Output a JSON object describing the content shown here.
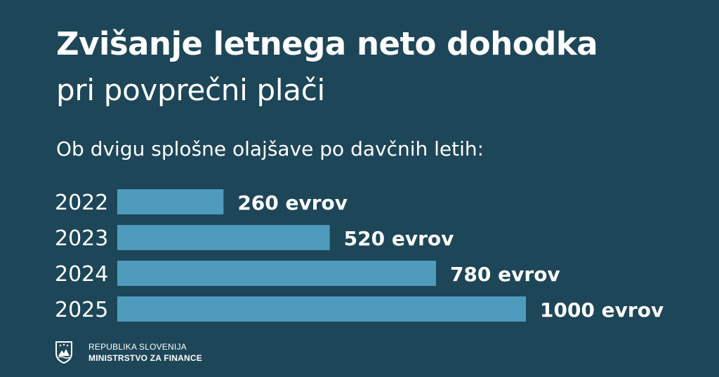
{
  "chart_data": {
    "type": "bar",
    "orientation": "horizontal",
    "title": "Zvišanje letnega neto dohodka",
    "subtitle": "pri povprečni plači",
    "intro": "Ob dvigu splošne olajšave po davčnih letih:",
    "categories": [
      "2022",
      "2023",
      "2024",
      "2025"
    ],
    "values": [
      260,
      520,
      780,
      1000
    ],
    "value_labels": [
      "260 evrov",
      "520 evrov",
      "780 evrov",
      "1000 evrov"
    ],
    "unit": "evrov",
    "xlim": [
      0,
      1000
    ],
    "grid": false,
    "legend": "none",
    "colors": {
      "background": "#1d4658",
      "bar": "#4e9bbd",
      "text": "#ffffff"
    }
  },
  "footer": {
    "line1": "REPUBLIKA SLOVENIJA",
    "line2": "MINISTRSTVO ZA FINANCE",
    "logo_icon": "slovenia-coat-of-arms-icon"
  }
}
